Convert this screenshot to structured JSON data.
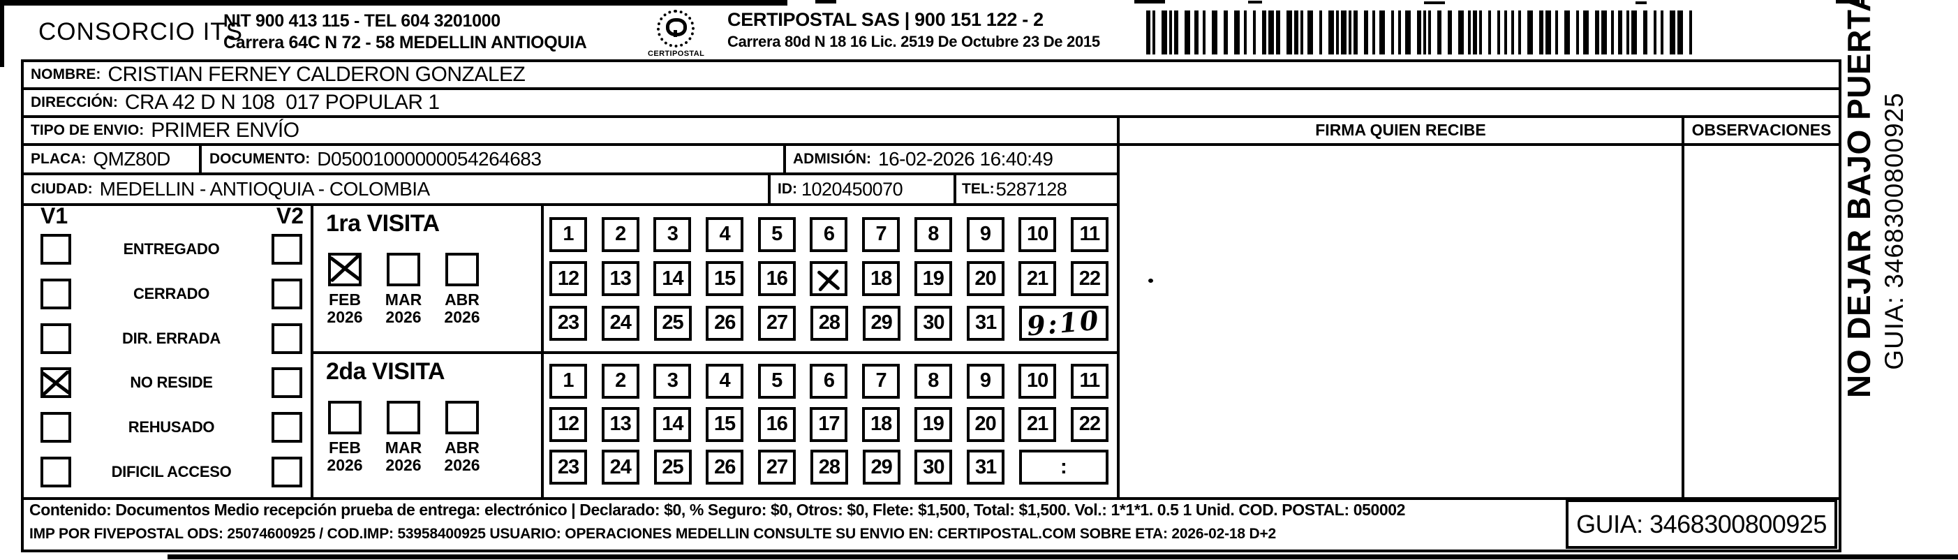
{
  "header": {
    "company": "CONSORCIO ITS",
    "company_info_line1": "NIT 900 413 115 - TEL 604 3201000",
    "company_info_line2": "Carrera 64C N 72 - 58 MEDELLIN ANTIOQUIA",
    "logo_text": "CERTIPOSTAL",
    "provider_line1": "CERTIPOSTAL SAS | 900 151 122 - 2",
    "provider_line2": "Carrera 80d N 18 16  Lic. 2519 De Octubre 23 De 2015"
  },
  "recipient": {
    "nombre_label": "NOMBRE:",
    "nombre": "CRISTIAN FERNEY CALDERON GONZALEZ",
    "direccion_label": "DIRECCIÓN:",
    "direccion": "CRA 42 D N 108  017 POPULAR 1",
    "tipo_envio_label": "TIPO DE ENVIO:",
    "tipo_envio": "PRIMER ENVÍO",
    "placa_label": "PLACA:",
    "placa": "QMZ80D",
    "documento_label": "DOCUMENTO:",
    "documento": "D05001000000054264683",
    "admision_label": "ADMISIÓN:",
    "admision": "16-02-2026 16:40:49",
    "ciudad_label": "CIUDAD:",
    "ciudad": "MEDELLIN - ANTIOQUIA - COLOMBIA",
    "id_label": "ID:",
    "id": "1020450070",
    "tel_label": "TEL:",
    "tel": "5287128"
  },
  "firma_header": "FIRMA QUIEN RECIBE",
  "observaciones_header": "OBSERVACIONES",
  "status_panel": {
    "v1_label": "V1",
    "v2_label": "V2",
    "rows": [
      {
        "label": "ENTREGADO",
        "v1": false,
        "v2": false
      },
      {
        "label": "CERRADO",
        "v1": false,
        "v2": false
      },
      {
        "label": "DIR. ERRADA",
        "v1": false,
        "v2": false
      },
      {
        "label": "NO RESIDE",
        "v1": true,
        "v2": false
      },
      {
        "label": "REHUSADO",
        "v1": false,
        "v2": false
      },
      {
        "label": "DIFICIL ACCESO",
        "v1": false,
        "v2": false
      }
    ]
  },
  "visits": [
    {
      "title": "1ra VISITA",
      "months": [
        {
          "month": "FEB",
          "year": "2026",
          "checked": true
        },
        {
          "month": "MAR",
          "year": "2026",
          "checked": false
        },
        {
          "month": "ABR",
          "year": "2026",
          "checked": false
        }
      ],
      "day_rows": [
        [
          1,
          2,
          3,
          4,
          5,
          6,
          7,
          8,
          9,
          10,
          11
        ],
        [
          12,
          13,
          14,
          15,
          16,
          17,
          18,
          19,
          20,
          21,
          22
        ],
        [
          23,
          24,
          25,
          26,
          27,
          28,
          29,
          30,
          31
        ]
      ],
      "crossed_day": 17,
      "time": "9:10",
      "time_handwritten": true
    },
    {
      "title": "2da VISITA",
      "months": [
        {
          "month": "FEB",
          "year": "2026",
          "checked": false
        },
        {
          "month": "MAR",
          "year": "2026",
          "checked": false
        },
        {
          "month": "ABR",
          "year": "2026",
          "checked": false
        }
      ],
      "day_rows": [
        [
          1,
          2,
          3,
          4,
          5,
          6,
          7,
          8,
          9,
          10,
          11
        ],
        [
          12,
          13,
          14,
          15,
          16,
          17,
          18,
          19,
          20,
          21,
          22
        ],
        [
          23,
          24,
          25,
          26,
          27,
          28,
          29,
          30,
          31
        ]
      ],
      "crossed_day": null,
      "time": ":",
      "time_handwritten": false
    }
  ],
  "footer": {
    "line1": "Contenido: Documentos Medio recepción prueba de entrega: electrónico | Declarado: $0, % Seguro: $0, Otros: $0, Flete: $1,500, Total: $1,500. Vol.: 1*1*1. 0.5  1 Unid. COD. POSTAL: 050002",
    "line2": "IMP POR FIVEPOSTAL ODS: 25074600925 / COD.IMP: 53958400925 USUARIO: OPERACIONES MEDELLIN CONSULTE SU ENVIO EN: CERTIPOSTAL.COM SOBRE ETA: 2026-02-18 D+2",
    "guia": "GUIA: 3468300800925"
  },
  "side_strip": {
    "line1": "NO DEJAR BAJO PUERTA",
    "line2": "GUIA: 3468300800925"
  }
}
